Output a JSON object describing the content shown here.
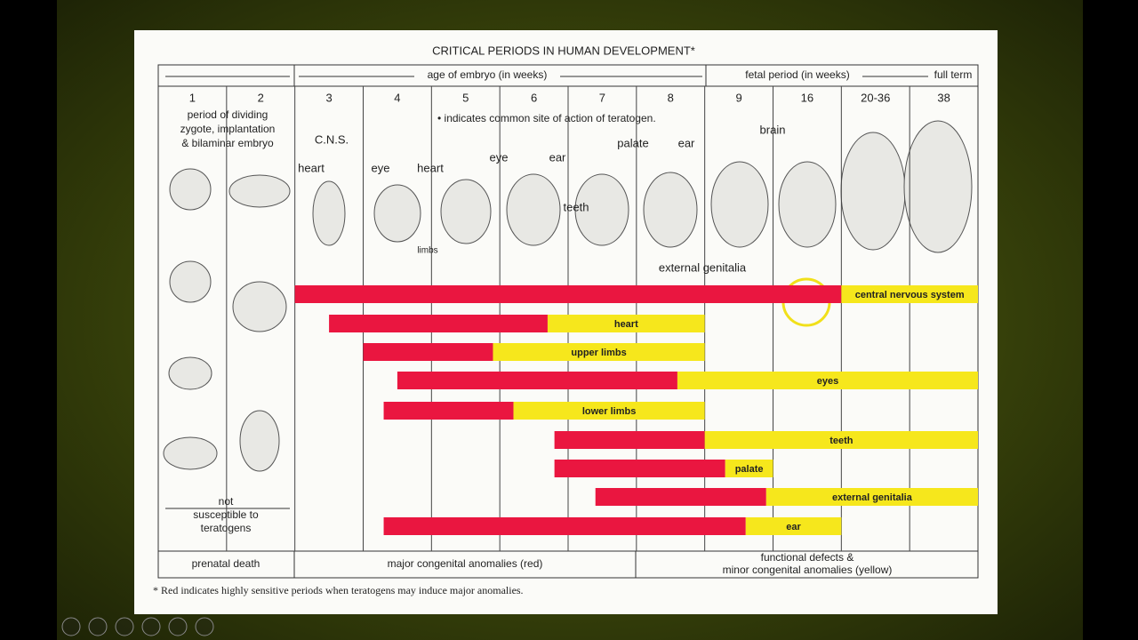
{
  "header": {
    "title": "CRITICAL PERIODS IN HUMAN DEVELOPMENT*",
    "embryo_label": "age of embryo (in weeks)",
    "fetal_label": "fetal period (in weeks)",
    "term_label": "full term"
  },
  "chart_data": {
    "type": "timeline",
    "categories": [
      "1",
      "2",
      "3",
      "4",
      "5",
      "6",
      "7",
      "8",
      "9",
      "16",
      "20-36",
      "38"
    ],
    "xlim": [
      0,
      12
    ],
    "period_note": [
      "period of dividing",
      "zygote, implantation",
      "& bilaminar embryo"
    ],
    "site_note": "• indicates common site of action of teratogen.",
    "annotations": [
      "C.N.S.",
      "heart",
      "eye",
      "heart",
      "eye",
      "ear",
      "limbs",
      "teeth",
      "palate",
      "ear",
      "brain",
      "external genitalia"
    ],
    "not_susceptible": [
      "not",
      "susceptible to",
      "teratogens"
    ],
    "colors": {
      "red": "#ea1640",
      "yellow": "#f6e71c"
    },
    "series": [
      {
        "name": "central nervous system",
        "red": [
          2.0,
          10.0
        ],
        "yellow": [
          10.0,
          12.0
        ]
      },
      {
        "name": "heart",
        "red": [
          2.5,
          5.7
        ],
        "yellow": [
          5.7,
          8.0
        ]
      },
      {
        "name": "upper limbs",
        "red": [
          3.0,
          4.9
        ],
        "yellow": [
          4.9,
          8.0
        ]
      },
      {
        "name": "eyes",
        "red": [
          3.5,
          7.6
        ],
        "yellow": [
          7.6,
          12.0
        ]
      },
      {
        "name": "lower limbs",
        "red": [
          3.3,
          5.2
        ],
        "yellow": [
          5.2,
          8.0
        ]
      },
      {
        "name": "teeth",
        "red": [
          5.8,
          8.0
        ],
        "yellow": [
          8.0,
          12.0
        ]
      },
      {
        "name": "palate",
        "red": [
          5.8,
          8.3
        ],
        "yellow": [
          8.3,
          9.0
        ]
      },
      {
        "name": "external genitalia",
        "red": [
          6.4,
          8.9
        ],
        "yellow": [
          8.9,
          12.0
        ]
      },
      {
        "name": "ear",
        "red": [
          3.3,
          8.6
        ],
        "yellow": [
          8.6,
          10.0
        ]
      }
    ]
  },
  "footer": {
    "prenatal": "prenatal death",
    "major": "major congenital anomalies (red)",
    "minor": [
      "functional defects &",
      "minor congenital anomalies (yellow)"
    ],
    "note": "* Red indicates highly sensitive periods when teratogens may induce major anomalies."
  }
}
